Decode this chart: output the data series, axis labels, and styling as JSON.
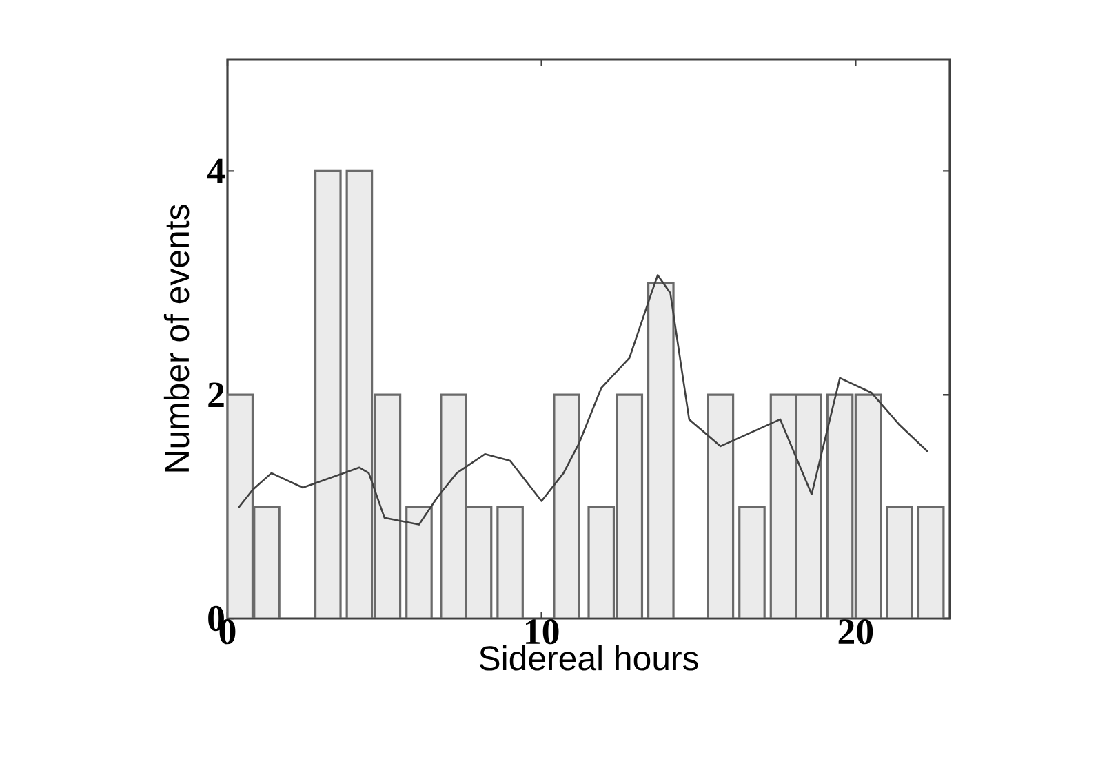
{
  "chart_data": {
    "type": "bar",
    "xlabel": "Sidereal hours",
    "ylabel": "Number of events",
    "xlim": [
      0,
      23
    ],
    "ylim": [
      0,
      5
    ],
    "xticks": [
      0,
      10,
      20
    ],
    "yticks": [
      0,
      2,
      4
    ],
    "series": [
      {
        "color": "#ebebeb",
        "x": [
          0.4,
          1.25,
          3.2,
          4.2,
          5.1,
          6.1,
          7.2,
          8.0,
          9.0,
          10.8,
          11.9,
          12.8,
          13.8,
          15.7,
          16.7,
          17.7,
          18.5,
          19.5,
          20.4,
          21.4,
          22.4
        ],
        "values": [
          2,
          1,
          4,
          4,
          2,
          1,
          2,
          1,
          1,
          2,
          1,
          2,
          3,
          2,
          1,
          2,
          2,
          2,
          2,
          1,
          1
        ]
      },
      {
        "type": "line",
        "color": "#404040",
        "x": [
          0.35,
          0.8,
          1.4,
          2.4,
          3.0,
          4.2,
          4.5,
          5.0,
          6.1,
          6.7,
          7.3,
          8.2,
          9.0,
          10.0,
          10.7,
          11.2,
          11.9,
          12.8,
          13.5,
          13.7,
          14.1,
          14.7,
          15.7,
          17.6,
          18.6,
          19.5,
          20.5,
          21.4,
          22.3
        ],
        "values": [
          0.99,
          1.15,
          1.3,
          1.17,
          1.23,
          1.35,
          1.3,
          0.9,
          0.84,
          1.09,
          1.3,
          1.47,
          1.41,
          1.05,
          1.3,
          1.57,
          2.06,
          2.33,
          2.91,
          3.07,
          2.91,
          1.78,
          1.54,
          1.78,
          1.11,
          2.15,
          2.02,
          1.73,
          1.49
        ]
      }
    ]
  }
}
